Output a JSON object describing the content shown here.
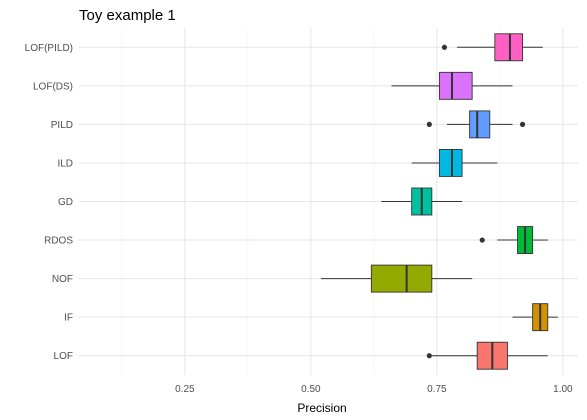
{
  "chart_data": {
    "type": "boxplot",
    "title": "Toy example 1",
    "xlabel": "Precision",
    "ylabel": "",
    "orientation": "horizontal",
    "xlim": [
      0.04,
      1.03
    ],
    "xticks": [
      0.25,
      0.5,
      0.75,
      1.0
    ],
    "xtick_labels": [
      "0.25",
      "0.50",
      "0.75",
      "1.00"
    ],
    "grid": true,
    "legend": "none",
    "categories": [
      "LOF(PILD)",
      "LOF(DS)",
      "PILD",
      "ILD",
      "GD",
      "RDOS",
      "NOF",
      "IF",
      "LOF"
    ],
    "boxes": [
      {
        "name": "LOF(PILD)",
        "whisker_low": 0.79,
        "q1": 0.865,
        "median": 0.895,
        "q3": 0.92,
        "whisker_high": 0.96,
        "outliers": [
          0.765
        ],
        "color": "#FF61C3"
      },
      {
        "name": "LOF(DS)",
        "whisker_low": 0.66,
        "q1": 0.755,
        "median": 0.78,
        "q3": 0.82,
        "whisker_high": 0.9,
        "outliers": [],
        "color": "#DB72FB"
      },
      {
        "name": "PILD",
        "whisker_low": 0.77,
        "q1": 0.815,
        "median": 0.83,
        "q3": 0.855,
        "whisker_high": 0.9,
        "outliers": [
          0.735,
          0.92
        ],
        "color": "#619CFF"
      },
      {
        "name": "ILD",
        "whisker_low": 0.7,
        "q1": 0.755,
        "median": 0.78,
        "q3": 0.8,
        "whisker_high": 0.87,
        "outliers": [],
        "color": "#00B9E3"
      },
      {
        "name": "GD",
        "whisker_low": 0.64,
        "q1": 0.7,
        "median": 0.72,
        "q3": 0.74,
        "whisker_high": 0.8,
        "outliers": [],
        "color": "#00C19F"
      },
      {
        "name": "RDOS",
        "whisker_low": 0.87,
        "q1": 0.91,
        "median": 0.925,
        "q3": 0.94,
        "whisker_high": 0.97,
        "outliers": [
          0.84
        ],
        "color": "#00BA38"
      },
      {
        "name": "NOF",
        "whisker_low": 0.52,
        "q1": 0.62,
        "median": 0.69,
        "q3": 0.74,
        "whisker_high": 0.82,
        "outliers": [],
        "color": "#93AA00"
      },
      {
        "name": "IF",
        "whisker_low": 0.9,
        "q1": 0.94,
        "median": 0.955,
        "q3": 0.97,
        "whisker_high": 0.99,
        "outliers": [],
        "color": "#D39200"
      },
      {
        "name": "LOF",
        "whisker_low": 0.74,
        "q1": 0.83,
        "median": 0.86,
        "q3": 0.89,
        "whisker_high": 0.97,
        "outliers": [
          0.735
        ],
        "color": "#F8766D"
      }
    ]
  }
}
